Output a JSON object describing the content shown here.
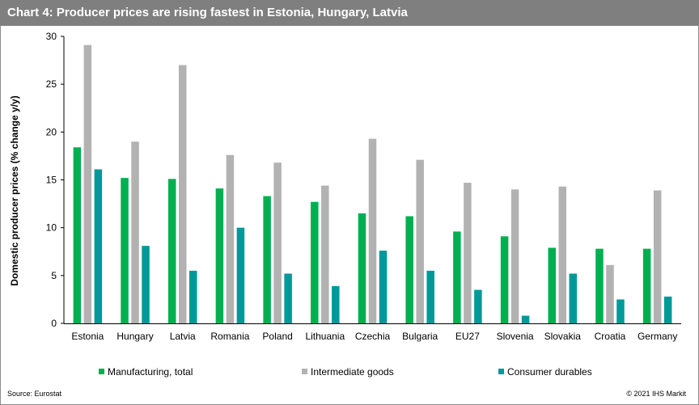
{
  "title": "Chart 4: Producer prices are rising fastest in Estonia, Hungary, Latvia",
  "source": "Source: Eurostat",
  "copyright": "© 2021 IHS Markit",
  "colors": {
    "manufacturing": "#00b050",
    "intermediate": "#b2b2b2",
    "consumer": "#009999",
    "title_bg": "#7f7f7f"
  },
  "chart_data": {
    "type": "bar",
    "title": "Chart 4: Producer prices are rising fastest in Estonia, Hungary, Latvia",
    "ylabel": "Domestic producer prices (% change y/y)",
    "xlabel": "",
    "ylim": [
      0,
      30
    ],
    "yticks": [
      0,
      5,
      10,
      15,
      20,
      25,
      30
    ],
    "grid": false,
    "legend": "bottom",
    "categories": [
      "Estonia",
      "Hungary",
      "Latvia",
      "Romania",
      "Poland",
      "Lithuania",
      "Czechia",
      "Bulgaria",
      "EU27",
      "Slovenia",
      "Slovakia",
      "Croatia",
      "Germany"
    ],
    "series": [
      {
        "name": "Manufacturing, total",
        "color": "#00b050",
        "values": [
          18.4,
          15.2,
          15.1,
          14.1,
          13.3,
          12.7,
          11.5,
          11.2,
          9.6,
          9.1,
          7.9,
          7.8,
          7.8
        ]
      },
      {
        "name": "Intermediate goods",
        "color": "#b2b2b2",
        "values": [
          29.1,
          19.0,
          27.0,
          17.6,
          16.8,
          14.4,
          19.3,
          17.1,
          14.7,
          14.0,
          14.3,
          6.1,
          13.9
        ]
      },
      {
        "name": "Consumer durables",
        "color": "#009999",
        "values": [
          16.1,
          8.1,
          5.5,
          10.0,
          5.2,
          3.9,
          7.6,
          5.5,
          3.5,
          0.8,
          5.2,
          2.5,
          2.8
        ]
      }
    ]
  }
}
